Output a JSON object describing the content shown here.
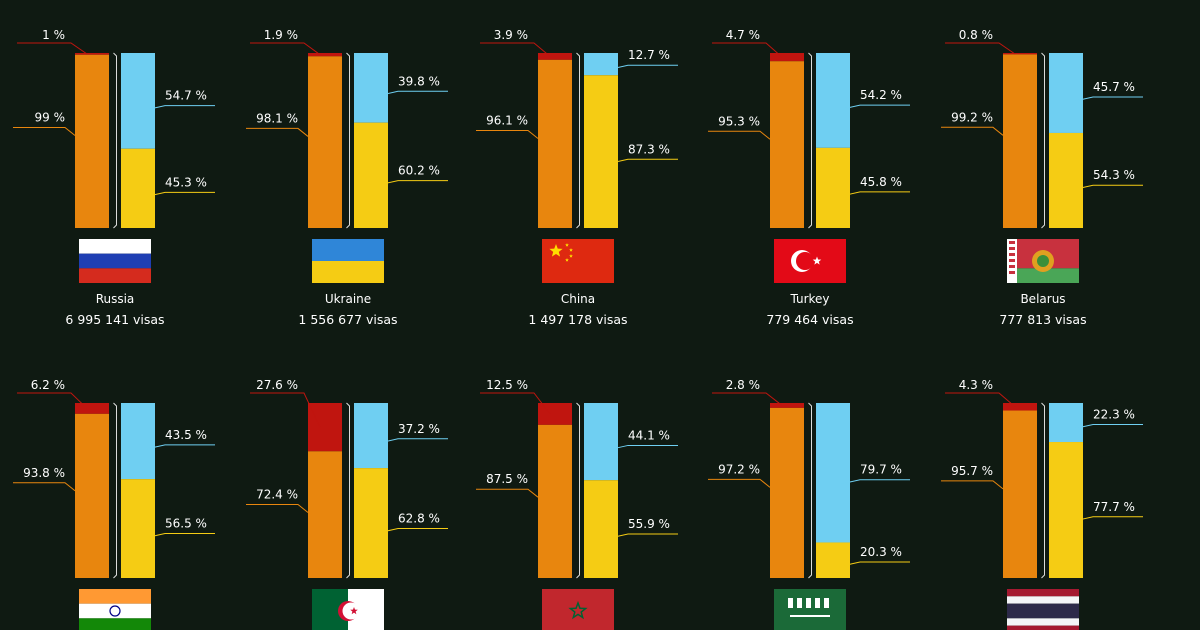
{
  "colors": {
    "background": "#0f1a12",
    "refused": "#c0150f",
    "issued": "#e8860e",
    "blue_segment": "#6fcff2",
    "yellow_segment": "#f5cc14"
  },
  "chart_data": {
    "type": "bar",
    "subtype": "stacked-bar-pairs",
    "title": "",
    "legend": "none",
    "grid": false,
    "countries": [
      {
        "name": "Russia",
        "visas_label": "6 995 141 visas",
        "flag": "russia-flag",
        "left": {
          "top": 1,
          "bottom": 99,
          "top_label": "1 %",
          "bottom_label": "99 %"
        },
        "right": {
          "top": 54.7,
          "bottom": 45.3,
          "top_label": "54.7 %",
          "bottom_label": "45.3 %"
        }
      },
      {
        "name": "Ukraine",
        "visas_label": "1 556 677 visas",
        "flag": "ukraine-flag",
        "left": {
          "top": 1.9,
          "bottom": 98.1,
          "top_label": "1.9 %",
          "bottom_label": "98.1 %"
        },
        "right": {
          "top": 39.8,
          "bottom": 60.2,
          "top_label": "39.8 %",
          "bottom_label": "60.2 %"
        }
      },
      {
        "name": "China",
        "visas_label": "1 497 178 visas",
        "flag": "china-flag",
        "left": {
          "top": 3.9,
          "bottom": 96.1,
          "top_label": "3.9 %",
          "bottom_label": "96.1 %"
        },
        "right": {
          "top": 12.7,
          "bottom": 87.3,
          "top_label": "12.7 %",
          "bottom_label": "87.3 %"
        }
      },
      {
        "name": "Turkey",
        "visas_label": "779 464 visas",
        "flag": "turkey-flag",
        "left": {
          "top": 4.7,
          "bottom": 95.3,
          "top_label": "4.7 %",
          "bottom_label": "95.3 %"
        },
        "right": {
          "top": 54.2,
          "bottom": 45.8,
          "top_label": "54.2 %",
          "bottom_label": "45.8 %"
        }
      },
      {
        "name": "Belarus",
        "visas_label": "777 813 visas",
        "flag": "belarus-flag",
        "left": {
          "top": 0.8,
          "bottom": 99.2,
          "top_label": "0.8 %",
          "bottom_label": "99.2 %"
        },
        "right": {
          "top": 45.7,
          "bottom": 54.3,
          "top_label": "45.7 %",
          "bottom_label": "54.3 %"
        }
      },
      {
        "name": "",
        "visas_label": "",
        "flag": "india-flag",
        "left": {
          "top": 6.2,
          "bottom": 93.8,
          "top_label": "6.2 %",
          "bottom_label": "93.8 %"
        },
        "right": {
          "top": 43.5,
          "bottom": 56.5,
          "top_label": "43.5 %",
          "bottom_label": "56.5 %"
        }
      },
      {
        "name": "",
        "visas_label": "",
        "flag": "algeria-flag",
        "left": {
          "top": 27.6,
          "bottom": 72.4,
          "top_label": "27.6 %",
          "bottom_label": "72.4 %"
        },
        "right": {
          "top": 37.2,
          "bottom": 62.8,
          "top_label": "37.2 %",
          "bottom_label": "62.8 %"
        }
      },
      {
        "name": "",
        "visas_label": "",
        "flag": "morocco-flag",
        "left": {
          "top": 12.5,
          "bottom": 87.5,
          "top_label": "12.5 %",
          "bottom_label": "87.5 %"
        },
        "right": {
          "top": 44.1,
          "bottom": 55.9,
          "top_label": "44.1 %",
          "bottom_label": "55.9 %"
        }
      },
      {
        "name": "",
        "visas_label": "",
        "flag": "saudi-arabia-flag",
        "left": {
          "top": 2.8,
          "bottom": 97.2,
          "top_label": "2.8 %",
          "bottom_label": "97.2 %"
        },
        "right": {
          "top": 79.7,
          "bottom": 20.3,
          "top_label": "79.7 %",
          "bottom_label": "20.3 %"
        }
      },
      {
        "name": "",
        "visas_label": "",
        "flag": "thailand-flag",
        "left": {
          "top": 4.3,
          "bottom": 95.7,
          "top_label": "4.3 %",
          "bottom_label": "95.7 %"
        },
        "right": {
          "top": 22.3,
          "bottom": 77.7,
          "top_label": "22.3 %",
          "bottom_label": "77.7 %"
        }
      }
    ]
  }
}
